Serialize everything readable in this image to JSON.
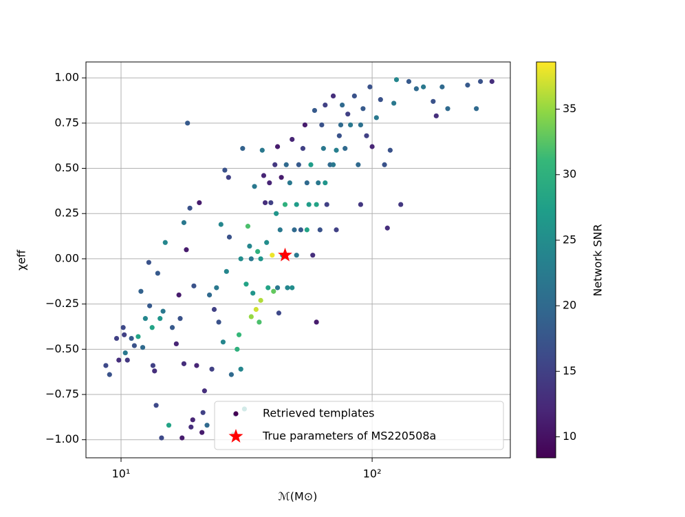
{
  "chart_data": {
    "type": "scatter",
    "xlabel": "ℳ(M⊙)",
    "ylabel": "χeff",
    "xscale": "log",
    "xlim": [
      7.25,
      355
    ],
    "xticks": [
      {
        "value": 10,
        "label": "10¹"
      },
      {
        "value": 100,
        "label": "10²"
      }
    ],
    "ylim": [
      -1.1,
      1.088
    ],
    "yticks": [
      {
        "value": -1,
        "label": "−1.00"
      },
      {
        "value": -0.75,
        "label": "−0.75"
      },
      {
        "value": -0.5,
        "label": "−0.50"
      },
      {
        "value": -0.25,
        "label": "−0.25"
      },
      {
        "value": 0,
        "label": "0.00"
      },
      {
        "value": 0.25,
        "label": "0.25"
      },
      {
        "value": 0.5,
        "label": "0.50"
      },
      {
        "value": 0.75,
        "label": "0.75"
      },
      {
        "value": 1,
        "label": "1.00"
      }
    ],
    "grid": true,
    "legend": "lower right",
    "colorbar": {
      "label": "Network SNR",
      "colormap": "viridis",
      "lim": [
        8.4,
        38.6
      ],
      "ticks": [
        10,
        15,
        20,
        25,
        30,
        35
      ]
    },
    "series": [
      {
        "name": "Retrieved templates",
        "x": [
          8.7,
          9.0,
          9.6,
          9.8,
          10.2,
          10.3,
          10.4,
          10.6,
          11.0,
          11.3,
          11.7,
          12.0,
          12.2,
          12.5,
          12.9,
          13.0,
          13.3,
          13.4,
          13.6,
          13.8,
          14.0,
          14.3,
          14.5,
          14.7,
          15.0,
          15.5,
          16.0,
          16.6,
          17.0,
          17.2,
          17.5,
          17.8,
          17.8,
          18.2,
          18.4,
          18.8,
          19.0,
          19.3,
          19.5,
          20.0,
          20.5,
          21.0,
          21.2,
          21.5,
          22.0,
          22.5,
          23.0,
          23.5,
          24.0,
          24.5,
          25.0,
          25.5,
          25.9,
          26.3,
          26.8,
          27.0,
          27.5,
          28.0,
          28.5,
          29.0,
          29.5,
          30.0,
          30.5,
          31.0,
          31.5,
          32.0,
          32.5,
          33.0,
          33.5,
          34.0,
          34.5,
          35.0,
          35.5,
          36.0,
          36.5,
          37.0,
          37.5,
          38.0,
          38.5,
          39.0,
          39.5,
          40.0,
          40.5,
          41.0,
          41.5,
          42.0,
          42.5,
          43.0,
          43.5,
          44.0,
          45.0,
          45.5,
          46.0,
          47.0,
          48.0,
          49.0,
          50.0,
          51.0,
          52.0,
          53.0,
          54.0,
          55.0,
          56.0,
          57.0,
          58.0,
          59.0,
          60.0,
          61.0,
          62.0,
          63.0,
          64.0,
          65.0,
          66.0,
          68.0,
          70.0,
          72.0,
          74.0,
          76.0,
          78.0,
          80.0,
          82.0,
          85.0,
          88.0,
          90.0,
          92.0,
          95.0,
          98.0,
          100,
          104,
          108,
          112,
          115,
          118,
          122,
          125,
          130,
          140,
          150,
          160,
          175,
          180,
          190,
          200,
          240,
          260,
          270,
          300,
          30,
          33,
          36,
          42,
          48,
          50,
          55,
          60,
          65,
          70,
          72,
          75,
          90
        ],
        "values": [
          -0.59,
          -0.64,
          -0.44,
          -0.56,
          -0.38,
          -0.42,
          -0.52,
          -0.56,
          -0.44,
          -0.48,
          -0.43,
          -0.18,
          -0.49,
          -0.33,
          -0.02,
          -0.26,
          -0.38,
          -0.59,
          -0.62,
          -0.81,
          -0.08,
          -0.33,
          -0.99,
          -0.29,
          0.09,
          -0.92,
          -0.38,
          -0.47,
          -0.2,
          -0.33,
          -0.99,
          -0.58,
          0.2,
          0.05,
          0.75,
          0.28,
          -0.93,
          -0.89,
          -0.15,
          -0.59,
          0.31,
          -0.96,
          -0.85,
          -0.73,
          -0.92,
          -0.2,
          -0.61,
          -0.28,
          -0.16,
          -0.35,
          0.19,
          -0.46,
          0.49,
          -0.07,
          0.45,
          0.12,
          -0.64,
          -0.97,
          -0.86,
          -0.5,
          -0.42,
          -0.61,
          0.61,
          -0.83,
          -0.14,
          0.18,
          0.07,
          -0.32,
          -0.19,
          0.4,
          -0.28,
          0.04,
          -0.35,
          -0.23,
          0.6,
          0.46,
          0.31,
          0.09,
          -0.16,
          0.42,
          0.31,
          0.02,
          -0.18,
          0.52,
          0.25,
          0.62,
          -0.3,
          0.16,
          0.45,
          0.02,
          0.3,
          0.52,
          -0.16,
          0.42,
          0.66,
          0.16,
          0.3,
          0.52,
          0.16,
          0.61,
          0.74,
          0.42,
          0.3,
          0.52,
          0.02,
          0.82,
          -0.35,
          0.42,
          0.16,
          0.74,
          0.61,
          0.85,
          0.3,
          0.52,
          0.9,
          0.16,
          0.68,
          0.85,
          0.61,
          0.8,
          0.74,
          0.9,
          0.52,
          0.3,
          0.83,
          0.68,
          0.95,
          0.62,
          0.78,
          0.88,
          0.52,
          0.17,
          0.6,
          0.86,
          0.99,
          0.3,
          0.98,
          0.94,
          0.95,
          0.87,
          0.79,
          0.95,
          0.83,
          0.96,
          0.83,
          0.98,
          0.98,
          0,
          0,
          0,
          -0.16,
          -0.16,
          0.02,
          0.16,
          0.3,
          0.42,
          0.52,
          0.6,
          0.74,
          0.74
        ],
        "snr": [
          16,
          17,
          15,
          13,
          16,
          15,
          22,
          14,
          18,
          17,
          28,
          19,
          20,
          24,
          17,
          18,
          28,
          15,
          13,
          16,
          18,
          26,
          16,
          22,
          24,
          28,
          18,
          12,
          11,
          17,
          11,
          13,
          22,
          11,
          18,
          17,
          13,
          12,
          17,
          12,
          11,
          11,
          15,
          13,
          20,
          20,
          15,
          15,
          22,
          17,
          24,
          24,
          17,
          24,
          15,
          17,
          20,
          26,
          24,
          30,
          31,
          24,
          19,
          26,
          28,
          32,
          24,
          35,
          26,
          22,
          37,
          30,
          32,
          36,
          22,
          12,
          13,
          25,
          28,
          12,
          15,
          38,
          33,
          14,
          26,
          11,
          16,
          22,
          11,
          27,
          30,
          20,
          24,
          22,
          12,
          20,
          27,
          18,
          18,
          15,
          11,
          20,
          27,
          27,
          13,
          18,
          11,
          22,
          17,
          17,
          22,
          15,
          15,
          20,
          13,
          15,
          17,
          20,
          20,
          15,
          22,
          17,
          20,
          14,
          18,
          15,
          17,
          12,
          22,
          17,
          17,
          13,
          17,
          22,
          24,
          14,
          18,
          20,
          22,
          17,
          13,
          20,
          20,
          18,
          20,
          17,
          13,
          25,
          22,
          26,
          22,
          25,
          22,
          28,
          28,
          26,
          22,
          23,
          20,
          21
        ]
      },
      {
        "name": "True parameters of MS220508a",
        "color": "#ff0000",
        "marker": "star",
        "x": [
          45
        ],
        "values": [
          0.02
        ]
      }
    ]
  }
}
